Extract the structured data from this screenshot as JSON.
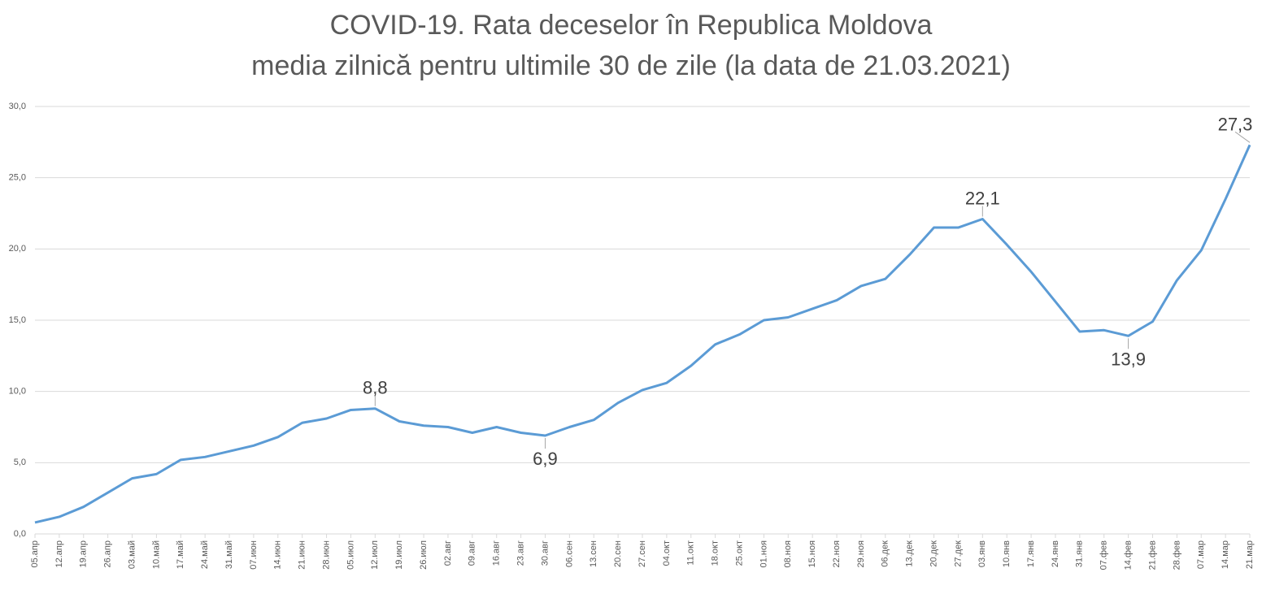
{
  "chart_data": {
    "type": "line",
    "title": "COVID-19. Rata deceselor în Republica Moldova",
    "subtitle": "media zilnică pentru ultimile 30 de zile (la data de 21.03.2021)",
    "categories": [
      "05.апр",
      "12.апр",
      "19.апр",
      "26.апр",
      "03.май",
      "10.май",
      "17.май",
      "24.май",
      "31.май",
      "07.июн",
      "14.июн",
      "21.июн",
      "28.июн",
      "05.июл",
      "12.июл",
      "19.июл",
      "26.июл",
      "02.авг",
      "09.авг",
      "16.авг",
      "23.авг",
      "30.авг",
      "06.сен",
      "13.сен",
      "20.сен",
      "27.сен",
      "04.окт",
      "11.окт",
      "18.окт",
      "25.окт",
      "01.ноя",
      "08.ноя",
      "15.ноя",
      "22.ноя",
      "29.ноя",
      "06.дек",
      "13.дек",
      "20.дек",
      "27.дек",
      "03.янв",
      "10.янв",
      "17.янв",
      "24.янв",
      "31.янв",
      "07.фев",
      "14.фев",
      "21.фев",
      "28.фев",
      "07.мар",
      "14.мар",
      "21.мар"
    ],
    "series": [
      {
        "color": "#5b9bd5",
        "values": [
          0.8,
          1.2,
          1.9,
          2.9,
          3.9,
          4.2,
          5.2,
          5.4,
          5.8,
          6.2,
          6.8,
          7.8,
          8.1,
          8.7,
          8.8,
          7.9,
          7.6,
          7.5,
          7.1,
          7.5,
          7.1,
          6.9,
          7.5,
          8.0,
          9.2,
          10.1,
          10.6,
          11.8,
          13.3,
          14.0,
          15.0,
          15.2,
          15.8,
          16.4,
          17.4,
          17.9,
          19.6,
          21.5,
          21.5,
          22.1,
          20.3,
          18.4,
          16.3,
          14.2,
          14.3,
          13.9,
          14.9,
          17.8,
          19.9,
          23.5,
          27.3
        ],
        "value_labels": [
          null,
          null,
          null,
          null,
          null,
          null,
          null,
          null,
          null,
          null,
          null,
          null,
          null,
          null,
          "8,8",
          null,
          null,
          null,
          null,
          null,
          null,
          "6,9",
          null,
          null,
          null,
          null,
          null,
          null,
          null,
          null,
          null,
          null,
          null,
          null,
          null,
          null,
          null,
          null,
          null,
          "22,1",
          null,
          null,
          null,
          null,
          null,
          "13,9",
          null,
          null,
          null,
          null,
          "27,3"
        ]
      }
    ],
    "ylim": [
      0,
      30
    ],
    "yticks": [
      {
        "value": 0,
        "label": "0,0"
      },
      {
        "value": 5,
        "label": "5,0"
      },
      {
        "value": 10,
        "label": "10,0"
      },
      {
        "value": 15,
        "label": "15,0"
      },
      {
        "value": 20,
        "label": "20,0"
      },
      {
        "value": 25,
        "label": "25,0"
      },
      {
        "value": 30,
        "label": "30,0"
      }
    ],
    "grid": true
  }
}
